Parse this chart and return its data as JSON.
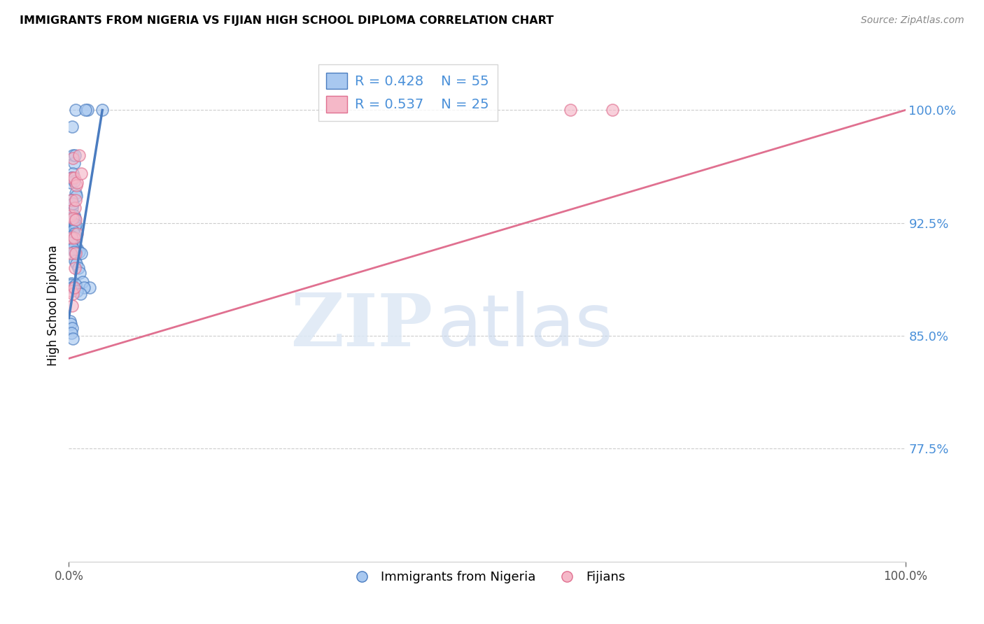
{
  "title": "IMMIGRANTS FROM NIGERIA VS FIJIAN HIGH SCHOOL DIPLOMA CORRELATION CHART",
  "source": "Source: ZipAtlas.com",
  "ylabel": "High School Diploma",
  "legend_blue_r": "R = 0.428",
  "legend_blue_n": "N = 55",
  "legend_pink_r": "R = 0.537",
  "legend_pink_n": "N = 25",
  "blue_color": "#a8c8f0",
  "pink_color": "#f5b8c8",
  "blue_line_color": "#4a7cc0",
  "pink_line_color": "#e07090",
  "blue_scatter_x": [
    0.008,
    0.005,
    0.022,
    0.004,
    0.006,
    0.007,
    0.004,
    0.005,
    0.003,
    0.002,
    0.006,
    0.008,
    0.009,
    0.003,
    0.004,
    0.005,
    0.006,
    0.007,
    0.005,
    0.004,
    0.003,
    0.006,
    0.007,
    0.008,
    0.005,
    0.006,
    0.003,
    0.004,
    0.01,
    0.012,
    0.015,
    0.007,
    0.003,
    0.005,
    0.006,
    0.007,
    0.009,
    0.011,
    0.013,
    0.016,
    0.003,
    0.003,
    0.004,
    0.008,
    0.04,
    0.025,
    0.018,
    0.001,
    0.002,
    0.01,
    0.014,
    0.004,
    0.003,
    0.005,
    0.02
  ],
  "blue_scatter_y": [
    1.0,
    0.97,
    1.0,
    0.989,
    0.965,
    0.97,
    0.955,
    0.958,
    0.955,
    0.952,
    0.953,
    0.945,
    0.943,
    0.94,
    0.935,
    0.938,
    0.93,
    0.928,
    0.925,
    0.924,
    0.926,
    0.923,
    0.922,
    0.924,
    0.92,
    0.918,
    0.916,
    0.912,
    0.908,
    0.906,
    0.905,
    0.91,
    0.912,
    0.908,
    0.906,
    0.9,
    0.898,
    0.895,
    0.892,
    0.886,
    0.885,
    0.884,
    0.882,
    0.884,
    1.0,
    0.882,
    0.882,
    0.86,
    0.858,
    0.88,
    0.878,
    0.855,
    0.852,
    0.848,
    1.0
  ],
  "pink_scatter_x": [
    0.002,
    0.003,
    0.004,
    0.005,
    0.006,
    0.007,
    0.008,
    0.009,
    0.01,
    0.012,
    0.015,
    0.003,
    0.005,
    0.006,
    0.008,
    0.01,
    0.002,
    0.003,
    0.004,
    0.005,
    0.006,
    0.007,
    0.008,
    0.6,
    0.65
  ],
  "pink_scatter_y": [
    0.93,
    0.94,
    0.955,
    0.968,
    0.955,
    0.935,
    0.94,
    0.95,
    0.952,
    0.97,
    0.958,
    0.915,
    0.928,
    0.915,
    0.927,
    0.918,
    0.905,
    0.88,
    0.87,
    0.878,
    0.882,
    0.895,
    0.905,
    1.0,
    1.0
  ],
  "blue_line_x": [
    0.0,
    0.04
  ],
  "blue_line_y": [
    0.862,
    1.0
  ],
  "pink_line_x": [
    0.0,
    1.0
  ],
  "pink_line_y": [
    0.835,
    1.0
  ],
  "xlim": [
    0.0,
    1.0
  ],
  "ylim": [
    0.7,
    1.04
  ],
  "yticks": [
    0.775,
    0.85,
    0.925,
    1.0
  ],
  "ytick_labels": [
    "77.5%",
    "85.0%",
    "92.5%",
    "100.0%"
  ],
  "xticks": [
    0.0,
    1.0
  ],
  "xtick_labels": [
    "0.0%",
    "100.0%"
  ],
  "grid_color": "#cccccc",
  "background_color": "#ffffff"
}
